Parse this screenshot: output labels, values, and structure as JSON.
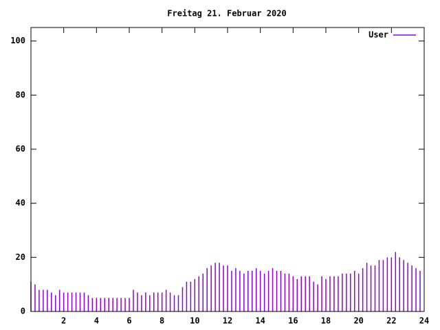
{
  "chart_data": {
    "type": "impulse",
    "title": "Freitag 21. Februar 2020",
    "series": [
      {
        "name": "User",
        "color": "#9400d3",
        "values": [
          11,
          10,
          8,
          8,
          8,
          7,
          6,
          8,
          7,
          7,
          7,
          7,
          7,
          7,
          6,
          5,
          5,
          5,
          5,
          5,
          5,
          5,
          5,
          5,
          5,
          8,
          7,
          6,
          7,
          6,
          7,
          7,
          7,
          8,
          7,
          6,
          6,
          9,
          11,
          11,
          12,
          13,
          14,
          16,
          17,
          18,
          18,
          17,
          17,
          15,
          16,
          15,
          14,
          15,
          15,
          16,
          15,
          14,
          15,
          16,
          15,
          15,
          14,
          14,
          13,
          12,
          13,
          13,
          13,
          11,
          10,
          13,
          12,
          13,
          13,
          13,
          14,
          14,
          14,
          15,
          14,
          16,
          18,
          17,
          17,
          19,
          19,
          20,
          20,
          22,
          20,
          19,
          18,
          17,
          16,
          15
        ]
      }
    ],
    "x": [
      0,
      0.25,
      0.5,
      0.75,
      1,
      1.25,
      1.5,
      1.75,
      2,
      2.25,
      2.5,
      2.75,
      3,
      3.25,
      3.5,
      3.75,
      4,
      4.25,
      4.5,
      4.75,
      5,
      5.25,
      5.5,
      5.75,
      6,
      6.25,
      6.5,
      6.75,
      7,
      7.25,
      7.5,
      7.75,
      8,
      8.25,
      8.5,
      8.75,
      9,
      9.25,
      9.5,
      9.75,
      10,
      10.25,
      10.5,
      10.75,
      11,
      11.25,
      11.5,
      11.75,
      12,
      12.25,
      12.5,
      12.75,
      13,
      13.25,
      13.5,
      13.75,
      14,
      14.25,
      14.5,
      14.75,
      15,
      15.25,
      15.5,
      15.75,
      16,
      16.25,
      16.5,
      16.75,
      17,
      17.25,
      17.5,
      17.75,
      18,
      18.25,
      18.5,
      18.75,
      19,
      19.25,
      19.5,
      19.75,
      20,
      20.25,
      20.5,
      20.75,
      21,
      21.25,
      21.5,
      21.75,
      22,
      22.25,
      22.5,
      22.75,
      23,
      23.25,
      23.5,
      23.75
    ],
    "xlim": [
      0,
      24
    ],
    "xticks": [
      2,
      4,
      6,
      8,
      10,
      12,
      14,
      16,
      18,
      20,
      22,
      24
    ],
    "ylim": [
      0,
      105
    ],
    "yticks": [
      0,
      20,
      40,
      60,
      80,
      100
    ],
    "legend": "top-right"
  }
}
